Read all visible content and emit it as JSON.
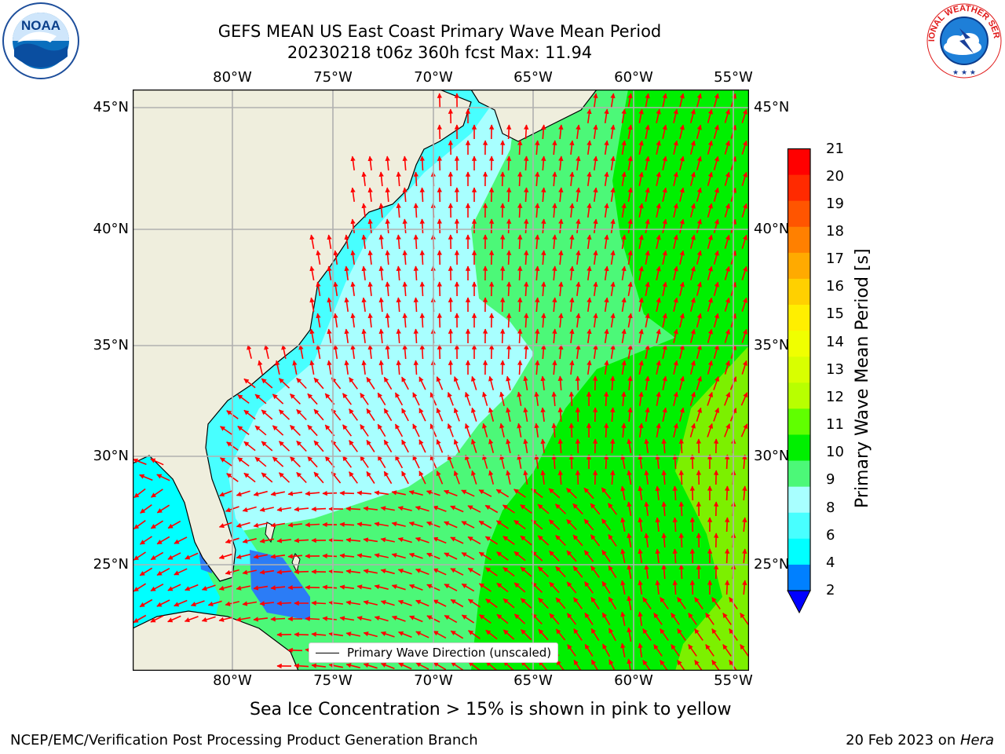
{
  "header": {
    "title_line1": "GEFS MEAN US East Coast Primary Wave Mean Period",
    "title_line2": "20230218 t06z 360h fcst   Max: 11.94"
  },
  "logos": {
    "left": {
      "name": "noaa-logo",
      "text": "NOAA"
    },
    "right": {
      "name": "nws-logo",
      "text": "NATIONAL WEATHER SERVICE"
    }
  },
  "map": {
    "lon_ticks": [
      "80°W",
      "75°W",
      "70°W",
      "65°W",
      "60°W",
      "55°W"
    ],
    "lat_ticks": [
      "45°N",
      "40°N",
      "35°N",
      "30°N",
      "25°N"
    ],
    "legend_label": "Primary Wave Direction (unscaled)",
    "colors": {
      "land": "#efeedd",
      "arrow": "#ff0000",
      "grid": "#b0b0b0"
    }
  },
  "colorbar": {
    "title": "Primary Wave Mean Period [s]",
    "ticks": [
      "21",
      "20",
      "19",
      "18",
      "17",
      "16",
      "15",
      "14",
      "13",
      "12",
      "11",
      "10",
      "9",
      "8",
      "6",
      "4",
      "2"
    ],
    "colors": [
      "#ff0000",
      "#ff2a00",
      "#ff5500",
      "#ff8000",
      "#ffaa00",
      "#ffd000",
      "#ffef00",
      "#f0ff00",
      "#d8ff00",
      "#b8ff00",
      "#60ff00",
      "#00f000",
      "#4cf878",
      "#a8ffff",
      "#48ffff",
      "#00ffff",
      "#0080ff"
    ],
    "extend_color": "#0000ff"
  },
  "note": "Sea Ice Concentration > 15% is shown in pink to yellow",
  "footer": {
    "left": "NCEP/EMC/Verification Post Processing Product Generation Branch",
    "date": "20 Feb 2023 on ",
    "machine": "Hera"
  }
}
